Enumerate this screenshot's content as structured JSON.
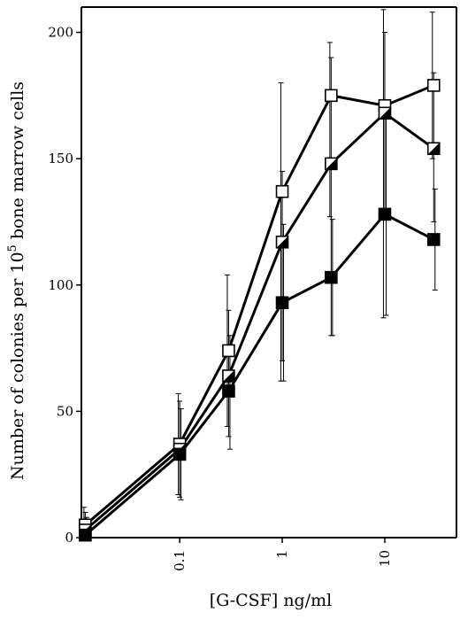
{
  "chart_data": {
    "type": "line",
    "xlabel": "[G-CSF] ng/ml",
    "ylabel_main": "Number of colonies per 10",
    "ylabel_sup": "5",
    "ylabel_tail": " bone marrow cells",
    "x_scale": "log",
    "x_ticks": [
      {
        "value": 0.1,
        "label": "0.1"
      },
      {
        "value": 1,
        "label": "1"
      },
      {
        "value": 10,
        "label": "10"
      }
    ],
    "y_ticks": [
      0,
      50,
      100,
      150,
      200
    ],
    "ylim": [
      0,
      210
    ],
    "xlim": [
      0.011,
      50
    ],
    "grid": false,
    "series": [
      {
        "marker": "open-square",
        "color": "#000000",
        "x": [
          0.012,
          0.1,
          0.3,
          1,
          3,
          10,
          30
        ],
        "y": [
          5,
          37,
          74,
          137,
          175,
          171,
          179
        ],
        "err_low": [
          0,
          17,
          44,
          62,
          127,
          87,
          150
        ],
        "err_high": [
          12,
          57,
          104,
          180,
          196,
          209,
          208
        ]
      },
      {
        "marker": "half-filled-square",
        "color": "#000000",
        "x": [
          0.012,
          0.1,
          0.3,
          1,
          3,
          10,
          30
        ],
        "y": [
          3,
          35,
          64,
          117,
          148,
          168,
          154
        ],
        "err_low": [
          0,
          16,
          40,
          70,
          80,
          130,
          125
        ],
        "err_high": [
          10,
          54,
          90,
          145,
          190,
          200,
          184
        ]
      },
      {
        "marker": "filled-square",
        "color": "#000000",
        "x": [
          0.012,
          0.1,
          0.3,
          1,
          3,
          10,
          30
        ],
        "y": [
          1,
          33,
          58,
          93,
          103,
          128,
          118
        ],
        "err_low": [
          0,
          15,
          35,
          62,
          80,
          88,
          98
        ],
        "err_high": [
          8,
          51,
          80,
          124,
          126,
          168,
          138
        ]
      }
    ]
  }
}
